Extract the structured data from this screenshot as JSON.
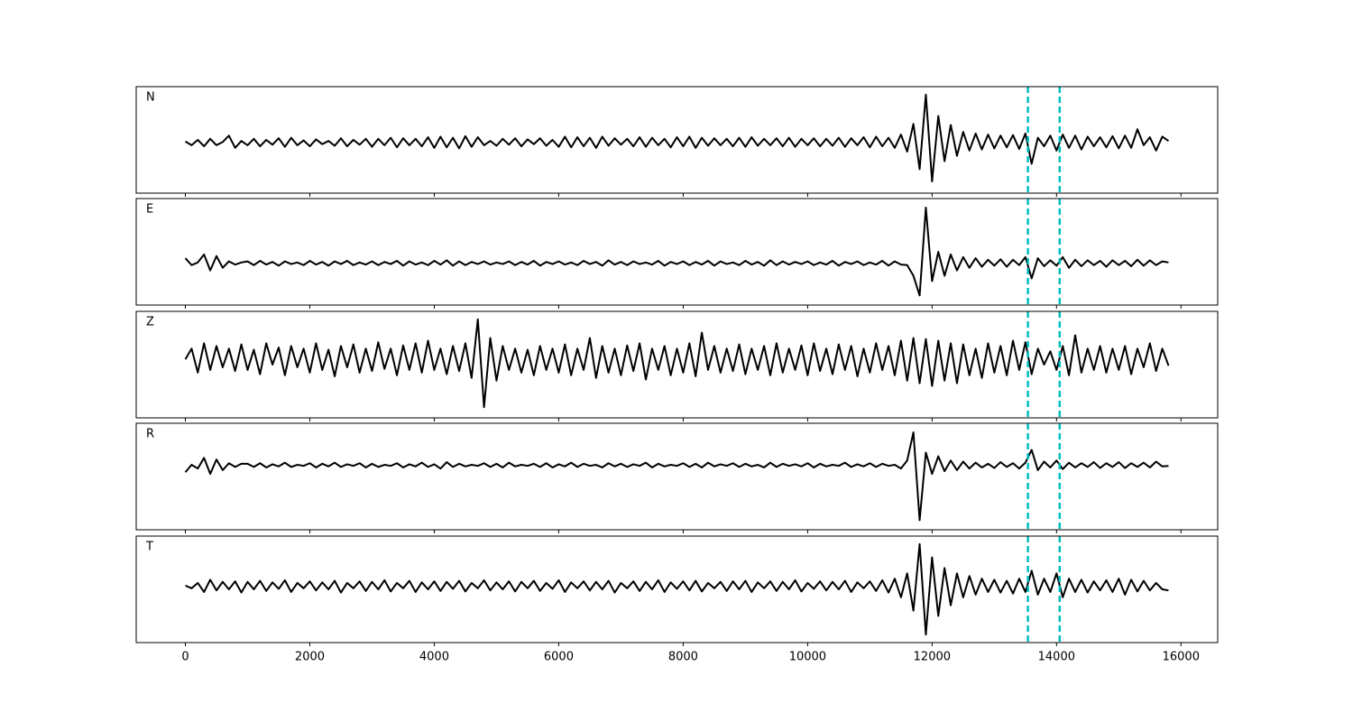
{
  "chart_data": {
    "type": "line",
    "x": [
      0,
      100,
      200,
      300,
      400,
      500,
      600,
      700,
      800,
      900,
      1000,
      1100,
      1200,
      1300,
      1400,
      1500,
      1600,
      1700,
      1800,
      1900,
      2000,
      2100,
      2200,
      2300,
      2400,
      2500,
      2600,
      2700,
      2800,
      2900,
      3000,
      3100,
      3200,
      3300,
      3400,
      3500,
      3600,
      3700,
      3800,
      3900,
      4000,
      4100,
      4200,
      4300,
      4400,
      4500,
      4600,
      4700,
      4800,
      4900,
      5000,
      5100,
      5200,
      5300,
      5400,
      5500,
      5600,
      5700,
      5800,
      5900,
      6000,
      6100,
      6200,
      6300,
      6400,
      6500,
      6600,
      6700,
      6800,
      6900,
      7000,
      7100,
      7200,
      7300,
      7400,
      7500,
      7600,
      7700,
      7800,
      7900,
      8000,
      8100,
      8200,
      8300,
      8400,
      8500,
      8600,
      8700,
      8800,
      8900,
      9000,
      9100,
      9200,
      9300,
      9400,
      9500,
      9600,
      9700,
      9800,
      9900,
      10000,
      10100,
      10200,
      10300,
      10400,
      10500,
      10600,
      10700,
      10800,
      10900,
      11000,
      11100,
      11200,
      11300,
      11400,
      11500,
      11600,
      11700,
      11800,
      11900,
      12000,
      12100,
      12200,
      12300,
      12400,
      12500,
      12600,
      12700,
      12800,
      12900,
      13000,
      13100,
      13200,
      13300,
      13400,
      13500,
      13600,
      13700,
      13800,
      13900,
      14000,
      14100,
      14200,
      14300,
      14400,
      14500,
      14600,
      14700,
      14800,
      14900,
      15000,
      15100,
      15200,
      15300,
      15400,
      15500,
      15600,
      15700,
      15800
    ],
    "xlim": [
      -790,
      16590
    ],
    "xticks": [
      0,
      2000,
      4000,
      6000,
      8000,
      10000,
      12000,
      14000,
      16000
    ],
    "ylim": [
      -1,
      1
    ],
    "vlines": [
      13540,
      14050
    ],
    "vline_color": "#00bfbf",
    "series": [
      {
        "name": "N",
        "color": "#000000",
        "values": [
          -0.03,
          -0.1,
          0.0,
          -0.12,
          0.02,
          -0.1,
          -0.04,
          0.08,
          -0.15,
          -0.02,
          -0.1,
          0.02,
          -0.12,
          0.0,
          -0.09,
          0.03,
          -0.13,
          0.04,
          -0.1,
          -0.01,
          -0.12,
          0.01,
          -0.08,
          -0.02,
          -0.11,
          0.03,
          -0.12,
          0.0,
          -0.09,
          0.02,
          -0.13,
          0.02,
          -0.1,
          0.04,
          -0.14,
          0.03,
          -0.1,
          0.02,
          -0.12,
          0.05,
          -0.15,
          0.06,
          -0.14,
          0.04,
          -0.16,
          0.07,
          -0.13,
          0.05,
          -0.1,
          -0.02,
          -0.11,
          0.02,
          -0.09,
          0.03,
          -0.12,
          0.01,
          -0.08,
          0.03,
          -0.11,
          0.0,
          -0.13,
          0.06,
          -0.14,
          0.05,
          -0.12,
          0.04,
          -0.15,
          0.06,
          -0.11,
          0.03,
          -0.09,
          0.02,
          -0.12,
          0.05,
          -0.13,
          0.04,
          -0.1,
          0.02,
          -0.14,
          0.05,
          -0.12,
          0.06,
          -0.15,
          0.04,
          -0.11,
          0.03,
          -0.1,
          0.02,
          -0.12,
          0.04,
          -0.13,
          0.05,
          -0.11,
          0.02,
          -0.1,
          0.03,
          -0.12,
          0.04,
          -0.13,
          0.02,
          -0.1,
          0.03,
          -0.12,
          0.02,
          -0.11,
          0.04,
          -0.13,
          0.03,
          -0.1,
          0.05,
          -0.14,
          0.06,
          -0.12,
          0.04,
          -0.15,
          0.1,
          -0.22,
          0.3,
          -0.55,
          0.85,
          -0.78,
          0.45,
          -0.4,
          0.28,
          -0.3,
          0.15,
          -0.2,
          0.12,
          -0.18,
          0.1,
          -0.16,
          0.08,
          -0.14,
          0.09,
          -0.17,
          0.12,
          -0.45,
          0.04,
          -0.12,
          0.08,
          -0.2,
          0.1,
          -0.15,
          0.08,
          -0.18,
          0.06,
          -0.12,
          0.05,
          -0.14,
          0.07,
          -0.16,
          0.08,
          -0.15,
          0.2,
          -0.1,
          0.05,
          -0.2,
          0.06,
          -0.02
        ]
      },
      {
        "name": "E",
        "color": "#000000",
        "values": [
          -0.12,
          -0.25,
          -0.2,
          -0.05,
          -0.35,
          -0.08,
          -0.3,
          -0.18,
          -0.24,
          -0.2,
          -0.18,
          -0.25,
          -0.17,
          -0.24,
          -0.19,
          -0.26,
          -0.18,
          -0.23,
          -0.2,
          -0.25,
          -0.17,
          -0.24,
          -0.19,
          -0.26,
          -0.18,
          -0.23,
          -0.17,
          -0.25,
          -0.2,
          -0.24,
          -0.18,
          -0.25,
          -0.19,
          -0.23,
          -0.17,
          -0.26,
          -0.18,
          -0.24,
          -0.2,
          -0.25,
          -0.17,
          -0.24,
          -0.16,
          -0.26,
          -0.18,
          -0.25,
          -0.19,
          -0.23,
          -0.18,
          -0.24,
          -0.2,
          -0.23,
          -0.18,
          -0.25,
          -0.19,
          -0.24,
          -0.17,
          -0.26,
          -0.19,
          -0.23,
          -0.18,
          -0.24,
          -0.2,
          -0.25,
          -0.17,
          -0.23,
          -0.19,
          -0.26,
          -0.16,
          -0.24,
          -0.19,
          -0.25,
          -0.18,
          -0.23,
          -0.2,
          -0.24,
          -0.17,
          -0.26,
          -0.19,
          -0.23,
          -0.18,
          -0.25,
          -0.19,
          -0.24,
          -0.17,
          -0.26,
          -0.18,
          -0.23,
          -0.2,
          -0.25,
          -0.17,
          -0.24,
          -0.19,
          -0.26,
          -0.16,
          -0.25,
          -0.18,
          -0.24,
          -0.19,
          -0.23,
          -0.18,
          -0.25,
          -0.2,
          -0.24,
          -0.17,
          -0.26,
          -0.19,
          -0.23,
          -0.18,
          -0.25,
          -0.2,
          -0.24,
          -0.17,
          -0.26,
          -0.18,
          -0.24,
          -0.25,
          -0.45,
          -0.82,
          0.83,
          -0.55,
          0.0,
          -0.45,
          -0.05,
          -0.35,
          -0.1,
          -0.3,
          -0.12,
          -0.28,
          -0.15,
          -0.26,
          -0.14,
          -0.28,
          -0.15,
          -0.25,
          -0.1,
          -0.5,
          -0.12,
          -0.27,
          -0.16,
          -0.26,
          -0.1,
          -0.3,
          -0.15,
          -0.27,
          -0.16,
          -0.25,
          -0.17,
          -0.28,
          -0.16,
          -0.25,
          -0.17,
          -0.27,
          -0.15,
          -0.26,
          -0.16,
          -0.25,
          -0.18,
          -0.2
        ]
      },
      {
        "name": "Z",
        "color": "#000000",
        "values": [
          0.1,
          0.3,
          -0.15,
          0.4,
          -0.1,
          0.35,
          -0.05,
          0.3,
          -0.12,
          0.38,
          -0.1,
          0.28,
          -0.18,
          0.4,
          0.0,
          0.32,
          -0.2,
          0.35,
          -0.05,
          0.3,
          -0.15,
          0.4,
          -0.1,
          0.28,
          -0.22,
          0.35,
          -0.05,
          0.38,
          -0.15,
          0.3,
          -0.12,
          0.42,
          -0.08,
          0.3,
          -0.2,
          0.36,
          -0.1,
          0.4,
          -0.15,
          0.45,
          -0.1,
          0.3,
          -0.18,
          0.35,
          -0.12,
          0.4,
          -0.25,
          0.85,
          -0.8,
          0.5,
          -0.3,
          0.35,
          -0.1,
          0.3,
          -0.15,
          0.28,
          -0.2,
          0.35,
          -0.1,
          0.3,
          -0.15,
          0.38,
          -0.2,
          0.3,
          -0.1,
          0.5,
          -0.25,
          0.35,
          -0.15,
          0.3,
          -0.2,
          0.36,
          -0.12,
          0.4,
          -0.28,
          0.3,
          -0.1,
          0.35,
          -0.2,
          0.3,
          -0.15,
          0.4,
          -0.22,
          0.6,
          -0.1,
          0.35,
          -0.15,
          0.3,
          -0.12,
          0.38,
          -0.18,
          0.3,
          -0.1,
          0.35,
          -0.2,
          0.4,
          -0.15,
          0.3,
          -0.1,
          0.36,
          -0.2,
          0.4,
          -0.12,
          0.3,
          -0.18,
          0.38,
          -0.1,
          0.35,
          -0.22,
          0.3,
          -0.15,
          0.4,
          -0.1,
          0.35,
          -0.2,
          0.45,
          -0.3,
          0.5,
          -0.35,
          0.48,
          -0.4,
          0.45,
          -0.3,
          0.4,
          -0.35,
          0.38,
          -0.2,
          0.3,
          -0.25,
          0.4,
          -0.15,
          0.35,
          -0.2,
          0.45,
          -0.1,
          0.42,
          -0.18,
          0.3,
          0.0,
          0.25,
          -0.1,
          0.35,
          -0.2,
          0.55,
          -0.15,
          0.3,
          -0.1,
          0.35,
          -0.15,
          0.3,
          -0.1,
          0.35,
          -0.18,
          0.3,
          -0.05,
          0.4,
          -0.12,
          0.3,
          -0.02
        ]
      },
      {
        "name": "R",
        "color": "#000000",
        "values": [
          0.08,
          0.22,
          0.15,
          0.35,
          0.05,
          0.32,
          0.12,
          0.25,
          0.18,
          0.24,
          0.24,
          0.18,
          0.25,
          0.17,
          0.23,
          0.19,
          0.26,
          0.18,
          0.22,
          0.2,
          0.25,
          0.17,
          0.24,
          0.19,
          0.26,
          0.18,
          0.23,
          0.2,
          0.25,
          0.17,
          0.24,
          0.18,
          0.22,
          0.2,
          0.25,
          0.17,
          0.23,
          0.19,
          0.26,
          0.18,
          0.23,
          0.15,
          0.27,
          0.18,
          0.24,
          0.19,
          0.22,
          0.2,
          0.25,
          0.18,
          0.24,
          0.17,
          0.26,
          0.19,
          0.22,
          0.2,
          0.24,
          0.18,
          0.25,
          0.17,
          0.23,
          0.19,
          0.26,
          0.18,
          0.24,
          0.2,
          0.22,
          0.17,
          0.25,
          0.19,
          0.24,
          0.18,
          0.23,
          0.2,
          0.26,
          0.17,
          0.24,
          0.19,
          0.22,
          0.2,
          0.25,
          0.18,
          0.24,
          0.17,
          0.26,
          0.19,
          0.23,
          0.2,
          0.25,
          0.18,
          0.24,
          0.19,
          0.22,
          0.17,
          0.26,
          0.18,
          0.24,
          0.2,
          0.23,
          0.19,
          0.25,
          0.17,
          0.24,
          0.19,
          0.22,
          0.2,
          0.26,
          0.18,
          0.23,
          0.19,
          0.25,
          0.18,
          0.24,
          0.2,
          0.22,
          0.15,
          0.3,
          0.83,
          -0.82,
          0.45,
          0.05,
          0.38,
          0.1,
          0.3,
          0.12,
          0.28,
          0.15,
          0.26,
          0.17,
          0.24,
          0.16,
          0.27,
          0.18,
          0.25,
          0.15,
          0.26,
          0.5,
          0.12,
          0.28,
          0.17,
          0.3,
          0.14,
          0.26,
          0.17,
          0.25,
          0.18,
          0.27,
          0.16,
          0.25,
          0.18,
          0.27,
          0.16,
          0.25,
          0.18,
          0.26,
          0.17,
          0.28,
          0.19,
          0.2
        ]
      },
      {
        "name": "T",
        "color": "#000000",
        "values": [
          0.07,
          0.02,
          0.12,
          -0.05,
          0.18,
          -0.02,
          0.14,
          0.0,
          0.15,
          -0.06,
          0.14,
          0.0,
          0.16,
          -0.03,
          0.13,
          0.01,
          0.17,
          -0.05,
          0.12,
          0.02,
          0.15,
          -0.02,
          0.13,
          0.0,
          0.16,
          -0.06,
          0.12,
          0.02,
          0.15,
          -0.03,
          0.14,
          0.0,
          0.17,
          -0.04,
          0.12,
          0.02,
          0.16,
          -0.05,
          0.13,
          0.0,
          0.15,
          -0.03,
          0.14,
          0.01,
          0.16,
          -0.04,
          0.12,
          0.02,
          0.17,
          -0.02,
          0.13,
          0.0,
          0.15,
          -0.04,
          0.14,
          0.02,
          0.16,
          -0.03,
          0.12,
          0.01,
          0.17,
          -0.05,
          0.13,
          0.02,
          0.15,
          -0.02,
          0.14,
          0.0,
          0.16,
          -0.06,
          0.12,
          0.02,
          0.15,
          -0.03,
          0.14,
          0.0,
          0.17,
          -0.05,
          0.13,
          0.01,
          0.15,
          -0.02,
          0.16,
          -0.04,
          0.12,
          0.02,
          0.14,
          -0.03,
          0.15,
          0.0,
          0.16,
          -0.05,
          0.13,
          0.02,
          0.15,
          -0.03,
          0.14,
          0.0,
          0.17,
          -0.04,
          0.12,
          0.01,
          0.15,
          -0.02,
          0.14,
          0.0,
          0.16,
          -0.05,
          0.13,
          0.02,
          0.15,
          -0.03,
          0.17,
          -0.06,
          0.2,
          -0.15,
          0.3,
          -0.4,
          0.85,
          -0.85,
          0.6,
          -0.5,
          0.4,
          -0.3,
          0.3,
          -0.15,
          0.25,
          -0.1,
          0.2,
          -0.05,
          0.18,
          -0.06,
          0.16,
          -0.08,
          0.2,
          -0.05,
          0.35,
          -0.1,
          0.2,
          -0.05,
          0.3,
          -0.15,
          0.2,
          -0.05,
          0.18,
          -0.06,
          0.15,
          -0.02,
          0.17,
          -0.05,
          0.2,
          -0.1,
          0.18,
          -0.04,
          0.16,
          -0.02,
          0.12,
          0.0,
          -0.02
        ]
      }
    ]
  }
}
